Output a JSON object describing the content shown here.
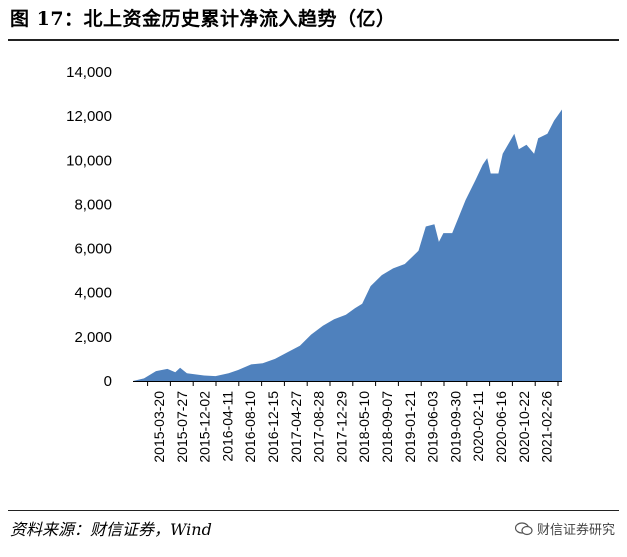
{
  "title": "图 17：北上资金历史累计净流入趋势（亿）",
  "source": "资料来源：财信证券，Wind",
  "watermark": "财信证券研究",
  "colors": {
    "area": "#4f81bd",
    "axis": "#000000"
  },
  "chart_data": {
    "type": "area",
    "title": "",
    "xlabel": "",
    "ylabel": "",
    "ylim": [
      0,
      14000
    ],
    "yticks": [
      0,
      2000,
      4000,
      6000,
      8000,
      10000,
      12000,
      14000
    ],
    "ytick_labels": [
      "0",
      "2,000",
      "4,000",
      "6,000",
      "8,000",
      "10,000",
      "12,000",
      "14,000"
    ],
    "xtick_labels": [
      "2015-03-20",
      "2015-07-27",
      "2015-12-02",
      "2016-04-11",
      "2016-08-10",
      "2016-12-15",
      "2017-04-27",
      "2017-08-28",
      "2017-12-29",
      "2018-05-10",
      "2018-09-07",
      "2019-01-21",
      "2019-06-03",
      "2019-09-30",
      "2020-02-11",
      "2020-06-16",
      "2020-10-22",
      "2021-02-26"
    ],
    "x": [
      "2014-11-17",
      "2015-01-15",
      "2015-03-20",
      "2015-05-20",
      "2015-07-01",
      "2015-07-27",
      "2015-09-01",
      "2015-12-02",
      "2016-02-01",
      "2016-04-11",
      "2016-06-01",
      "2016-08-10",
      "2016-10-10",
      "2016-12-15",
      "2017-02-20",
      "2017-04-27",
      "2017-06-26",
      "2017-08-28",
      "2017-10-27",
      "2017-12-29",
      "2018-02-15",
      "2018-03-26",
      "2018-05-10",
      "2018-07-09",
      "2018-09-07",
      "2018-11-09",
      "2019-01-21",
      "2019-03-01",
      "2019-04-16",
      "2019-05-10",
      "2019-06-03",
      "2019-07-20",
      "2019-09-30",
      "2019-11-21",
      "2019-12-30",
      "2020-01-23",
      "2020-02-11",
      "2020-03-23",
      "2020-04-15",
      "2020-06-16",
      "2020-07-10",
      "2020-08-20",
      "2020-09-30",
      "2020-10-22",
      "2020-12-10",
      "2021-01-15",
      "2021-02-26"
    ],
    "series": [
      {
        "values": [
          0,
          120,
          450,
          550,
          400,
          600,
          350,
          250,
          220,
          350,
          500,
          750,
          800,
          1000,
          1300,
          1600,
          2100,
          2500,
          2800,
          3000,
          3300,
          3500,
          4300,
          4800,
          5100,
          5300,
          5900,
          7000,
          7100,
          6300,
          6700,
          6700,
          8200,
          9100,
          9800,
          10100,
          9400,
          9400,
          10300,
          11200,
          10500,
          10700,
          10300,
          11000,
          11200,
          11800,
          12300
        ]
      }
    ]
  }
}
